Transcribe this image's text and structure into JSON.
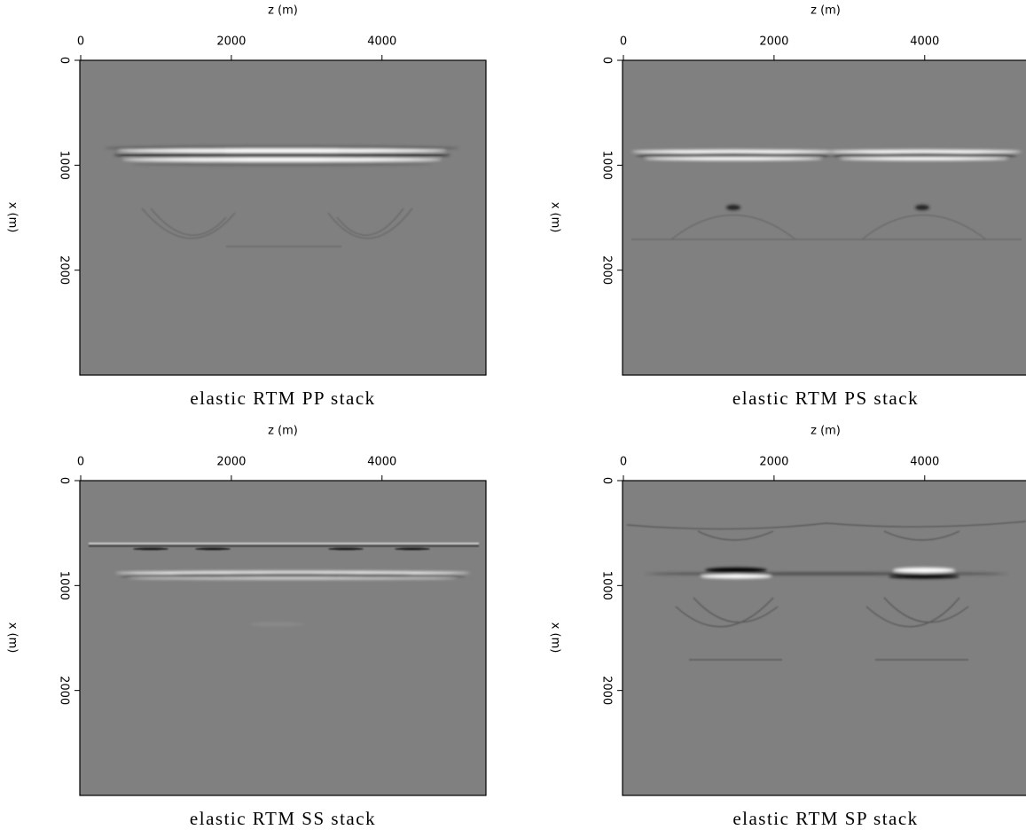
{
  "chart_data": [
    {
      "type": "image",
      "title": "elastic RTM PP stack",
      "xlabel": "z (m)",
      "ylabel": "x (m)",
      "xlim": [
        0,
        5380
      ],
      "ylim": [
        0,
        3000
      ],
      "xticks": [
        0,
        2000,
        4000
      ],
      "yticks": [
        0,
        1000,
        2000
      ]
    },
    {
      "type": "image",
      "title": "elastic RTM PS stack",
      "xlabel": "z (m)",
      "ylabel": "x (m)",
      "xlim": [
        0,
        5380
      ],
      "ylim": [
        0,
        3000
      ],
      "xticks": [
        0,
        2000,
        4000
      ],
      "yticks": [
        0,
        1000,
        2000
      ]
    },
    {
      "type": "image",
      "title": "elastic RTM SS stack",
      "xlabel": "z (m)",
      "ylabel": "x (m)",
      "xlim": [
        0,
        5380
      ],
      "ylim": [
        0,
        3000
      ],
      "xticks": [
        0,
        2000,
        4000
      ],
      "yticks": [
        0,
        1000,
        2000
      ]
    },
    {
      "type": "image",
      "title": "elastic RTM SP stack",
      "xlabel": "z (m)",
      "ylabel": "x (m)",
      "xlim": [
        0,
        5380
      ],
      "ylim": [
        0,
        3000
      ],
      "xticks": [
        0,
        2000,
        4000
      ],
      "yticks": [
        0,
        1000,
        2000
      ]
    }
  ]
}
